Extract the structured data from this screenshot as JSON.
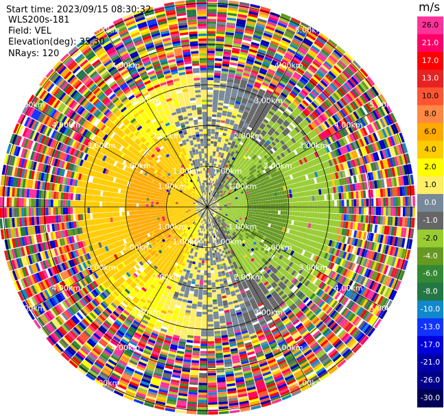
{
  "header": {
    "start_time": "Start time: 2023/09/15 08:30:32",
    "instrument": "WLS200s-181",
    "field": "Field: VEL",
    "elevation": "Elevation(deg): 35.30",
    "nrays": "NRays: 120"
  },
  "colorbar": {
    "unit": "m/s",
    "labels": [
      "26.0",
      "21.0",
      "17.0",
      "13.0",
      "10.0",
      "8.0",
      "6.0",
      "4.0",
      "2.0",
      "1.0",
      "0.0",
      "-1.0",
      "-2.0",
      "-4.0",
      "-6.0",
      "-8.0",
      "-10.0",
      "-13.0",
      "-17.0",
      "-21.0",
      "-26.0",
      "-30.0"
    ],
    "bin_colors": [
      "#ff3399",
      "#ff0066",
      "#ff0000",
      "#e62222",
      "#ff5533",
      "#ff8844",
      "#ffaa00",
      "#ffcc00",
      "#ffff00",
      "#ffee66",
      "#778899",
      "#666666",
      "#99cc33",
      "#669922",
      "#338833",
      "#227744",
      "#1188cc",
      "#1133ff",
      "#0000dd",
      "#0000aa",
      "#000088",
      "#000055"
    ]
  },
  "chart_data": {
    "type": "heatmap",
    "title": "",
    "field": "VEL",
    "unit": "m/s",
    "nrays": 120,
    "elevation_deg": 35.3,
    "range_rings_km": [
      1.0,
      2.0,
      3.0,
      4.0,
      5.0
    ],
    "range_labels": [
      "1.00km",
      "2.00km",
      "3.00km",
      "4.00km",
      "5.00km"
    ],
    "max_range_km": 5.1,
    "approx_velocity_regions": [
      {
        "region": "center",
        "range_km": [
          0,
          0.3
        ],
        "velocity_ms": 0.0
      },
      {
        "region": "west",
        "range_km": [
          0.3,
          3.0
        ],
        "velocity_ms": 3.0
      },
      {
        "region": "west-core",
        "range_km": [
          1.0,
          2.0
        ],
        "velocity_ms": 5.0
      },
      {
        "region": "east",
        "range_km": [
          0.3,
          3.0
        ],
        "velocity_ms": -3.0
      },
      {
        "region": "east-core",
        "range_km": [
          0.8,
          1.7
        ],
        "velocity_ms": -5.0
      },
      {
        "region": "north-south",
        "range_km": [
          0.3,
          2.5
        ],
        "velocity_ms": 0.0
      },
      {
        "region": "outer",
        "range_km": [
          3.0,
          5.1
        ],
        "velocity_ms": "noise"
      }
    ]
  }
}
